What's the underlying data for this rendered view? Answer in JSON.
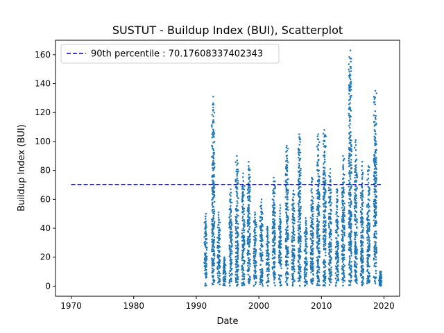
{
  "chart_data": {
    "type": "scatter",
    "title": "SUSTUT - Buildup Index (BUI), Scatterplot",
    "xlabel": "Date",
    "ylabel": "Buildup Index (BUI)",
    "xlim": [
      1967.5,
      2022.5
    ],
    "ylim": [
      -7,
      170
    ],
    "x_ticks": [
      1970,
      1980,
      1990,
      2000,
      2010,
      2020
    ],
    "y_ticks": [
      0,
      20,
      40,
      60,
      80,
      100,
      120,
      140,
      160
    ],
    "legend": {
      "placement": "top-left",
      "label": "90th percentile : 70.17608337402343"
    },
    "reference_line": {
      "y": 70.17608337402343,
      "x_start": 1970,
      "x_end": 2019.5,
      "style": "dashed",
      "color": "#0000cd"
    },
    "marker_color": "#1f77b4",
    "seasons": [
      {
        "year": 1991.5,
        "peak": 50
      },
      {
        "year": 1992.7,
        "peak": 131
      },
      {
        "year": 1993.6,
        "peak": 51
      },
      {
        "year": 1994.5,
        "peak": 20
      },
      {
        "year": 1995.5,
        "peak": 67
      },
      {
        "year": 1996.5,
        "peak": 90
      },
      {
        "year": 1997.5,
        "peak": 78
      },
      {
        "year": 1998.4,
        "peak": 86
      },
      {
        "year": 1999.4,
        "peak": 51
      },
      {
        "year": 2000.4,
        "peak": 60
      },
      {
        "year": 2001.4,
        "peak": 41
      },
      {
        "year": 2002.4,
        "peak": 75
      },
      {
        "year": 2003.4,
        "peak": 56
      },
      {
        "year": 2004.5,
        "peak": 97
      },
      {
        "year": 2005.5,
        "peak": 66
      },
      {
        "year": 2006.5,
        "peak": 105
      },
      {
        "year": 2007.5,
        "peak": 47
      },
      {
        "year": 2008.5,
        "peak": 75
      },
      {
        "year": 2009.5,
        "peak": 105
      },
      {
        "year": 2010.5,
        "peak": 108
      },
      {
        "year": 2011.4,
        "peak": 81
      },
      {
        "year": 2012.5,
        "peak": 67
      },
      {
        "year": 2013.5,
        "peak": 90
      },
      {
        "year": 2014.6,
        "peak": 163
      },
      {
        "year": 2015.5,
        "peak": 101
      },
      {
        "year": 2016.5,
        "peak": 86
      },
      {
        "year": 2017.5,
        "peak": 83
      },
      {
        "year": 2018.6,
        "peak": 135
      },
      {
        "year": 2019.4,
        "peak": 10
      }
    ]
  }
}
